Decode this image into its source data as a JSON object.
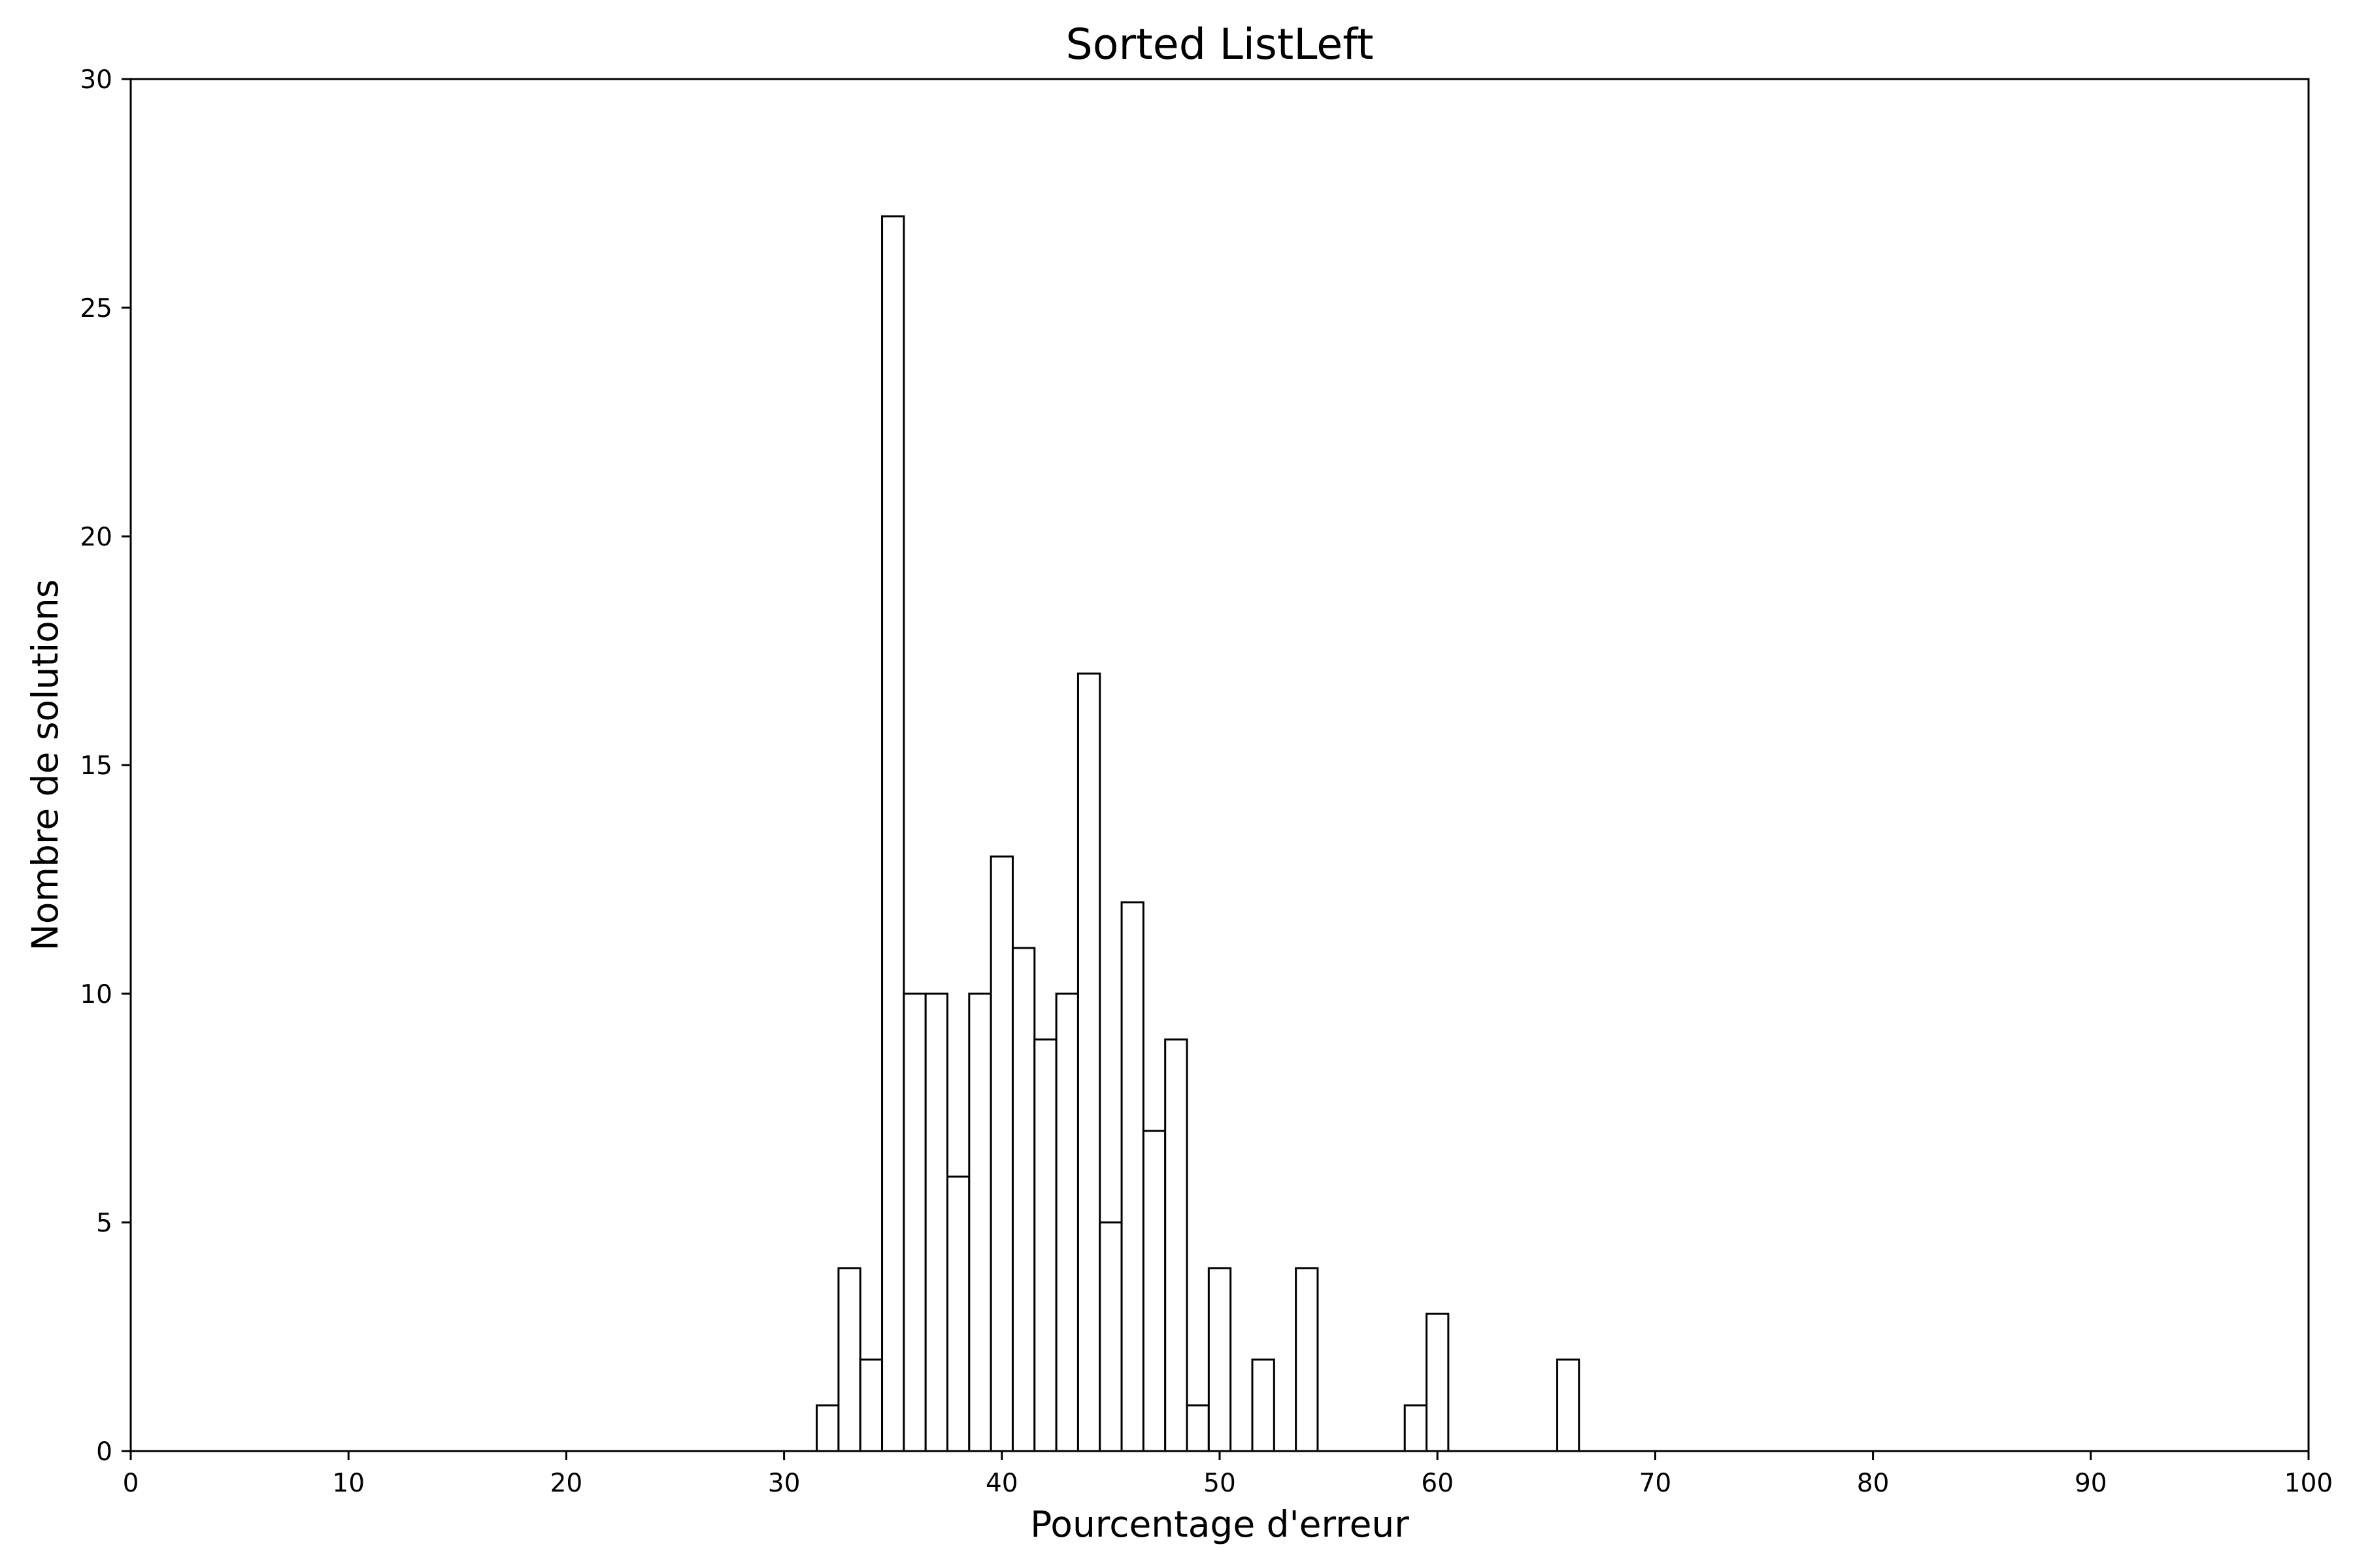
{
  "chart_data": {
    "type": "bar",
    "title": "Sorted ListLeft",
    "xlabel": "Pourcentage d'erreur",
    "ylabel": "Nombre de solutions",
    "xlim": [
      0,
      100
    ],
    "ylim": [
      0,
      30
    ],
    "x_ticks": [
      0,
      10,
      20,
      30,
      40,
      50,
      60,
      70,
      80,
      90,
      100
    ],
    "y_ticks": [
      0,
      5,
      10,
      15,
      20,
      25,
      30
    ],
    "grid": false,
    "bar_fill": "#ffffff",
    "bar_edge": "#000000",
    "bin_width": 1,
    "bins": [
      {
        "start": 31.5,
        "count": 1
      },
      {
        "start": 32.5,
        "count": 4
      },
      {
        "start": 33.5,
        "count": 2
      },
      {
        "start": 34.5,
        "count": 27
      },
      {
        "start": 35.5,
        "count": 10
      },
      {
        "start": 36.5,
        "count": 10
      },
      {
        "start": 37.5,
        "count": 6
      },
      {
        "start": 38.5,
        "count": 10
      },
      {
        "start": 39.5,
        "count": 13
      },
      {
        "start": 40.5,
        "count": 11
      },
      {
        "start": 41.5,
        "count": 9
      },
      {
        "start": 42.5,
        "count": 10
      },
      {
        "start": 43.5,
        "count": 17
      },
      {
        "start": 44.5,
        "count": 5
      },
      {
        "start": 45.5,
        "count": 12
      },
      {
        "start": 46.5,
        "count": 7
      },
      {
        "start": 47.5,
        "count": 9
      },
      {
        "start": 48.5,
        "count": 1
      },
      {
        "start": 49.5,
        "count": 4
      },
      {
        "start": 51.5,
        "count": 2
      },
      {
        "start": 53.5,
        "count": 4
      },
      {
        "start": 58.5,
        "count": 1
      },
      {
        "start": 59.5,
        "count": 3
      },
      {
        "start": 65.5,
        "count": 2
      }
    ]
  }
}
